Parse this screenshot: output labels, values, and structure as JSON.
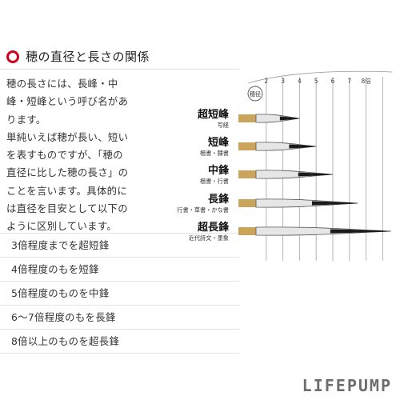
{
  "heading": {
    "title": "穂の直径と長さの関係",
    "bullet_color": "#d0021b"
  },
  "description": {
    "lines": [
      "穂の長さには、長峰・中",
      "峰・短峰という呼び名があ",
      "ります。",
      "単純いえば穂が長い、短い",
      "を表すものですが、「穂の",
      "直径に比した穂の長さ」の",
      "ことを言います。具体的に",
      "は直径を目安として以下の",
      "ように区別しています。"
    ]
  },
  "rules": [
    "3倍程度までを超短鋒",
    "4倍程度のもを短鋒",
    "5倍程度のものを中鋒",
    "6～7倍程度のもを長鋒",
    "8倍以上のものを超長鋒"
  ],
  "diagram": {
    "diameter_label": "穂径",
    "ticks": [
      "2",
      "3",
      "4",
      "5",
      "6",
      "7",
      "8倍"
    ],
    "brushes": [
      {
        "name": "超短峰",
        "uses": "写経",
        "length": 3
      },
      {
        "name": "短峰",
        "uses": "楷書・隷書",
        "length": 4
      },
      {
        "name": "中鋒",
        "uses": "楷書・行書",
        "length": 5
      },
      {
        "name": "長鋒",
        "uses": "行書・草書・かな書",
        "length": 6.5
      },
      {
        "name": "超長鋒",
        "uses": "近代詩文・墨象",
        "length": 8.5
      }
    ],
    "colors": {
      "ferrule": "#c9a45a",
      "tip": "#1a1a1a",
      "grid": "#b5b5b5"
    }
  },
  "brand": "LIFEPUMP"
}
